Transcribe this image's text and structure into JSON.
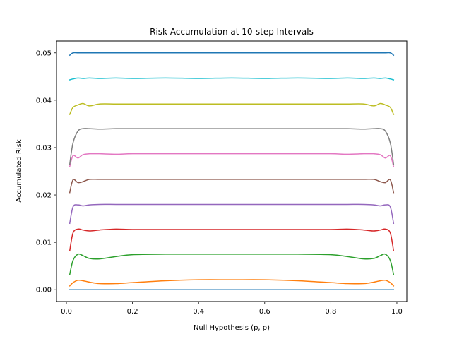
{
  "chart_data": {
    "type": "line",
    "title": "Risk Accumulation at 10-step Intervals",
    "xlabel": "Null Hypothesis (p, p)",
    "ylabel": "Accumulated Risk",
    "xlim": [
      -0.03,
      1.03
    ],
    "ylim": [
      -0.0025,
      0.0525
    ],
    "xticks": [
      0.0,
      0.2,
      0.4,
      0.6,
      0.8,
      1.0
    ],
    "xtick_labels": [
      "0.0",
      "0.2",
      "0.4",
      "0.6",
      "0.8",
      "1.0"
    ],
    "yticks": [
      0.0,
      0.01,
      0.02,
      0.03,
      0.04,
      0.05
    ],
    "ytick_labels": [
      "0.00",
      "0.01",
      "0.02",
      "0.03",
      "0.04",
      "0.05"
    ],
    "grid": false,
    "x": [
      0.01,
      0.02,
      0.035,
      0.05,
      0.07,
      0.1,
      0.15,
      0.2,
      0.3,
      0.4,
      0.5,
      0.6,
      0.7,
      0.8,
      0.85,
      0.9,
      0.93,
      0.95,
      0.965,
      0.98,
      0.99
    ],
    "series": [
      {
        "color": "#1f77b4",
        "values": [
          0.0,
          0.0,
          0.0,
          0.0,
          0.0,
          0.0,
          0.0,
          0.0,
          0.0,
          0.0,
          0.0,
          0.0,
          0.0,
          0.0,
          0.0,
          0.0,
          0.0,
          0.0,
          0.0,
          0.0,
          0.0
        ]
      },
      {
        "color": "#ff7f0e",
        "values": [
          0.0008,
          0.0015,
          0.002,
          0.0019,
          0.0016,
          0.0013,
          0.0013,
          0.0015,
          0.0019,
          0.0021,
          0.0021,
          0.0021,
          0.0019,
          0.0015,
          0.0013,
          0.0013,
          0.0016,
          0.0019,
          0.002,
          0.0015,
          0.0008
        ]
      },
      {
        "color": "#2ca02c",
        "values": [
          0.0032,
          0.0062,
          0.0075,
          0.0072,
          0.0066,
          0.0065,
          0.007,
          0.0074,
          0.0075,
          0.0075,
          0.0075,
          0.0075,
          0.0075,
          0.0074,
          0.007,
          0.0065,
          0.0066,
          0.0072,
          0.0075,
          0.0062,
          0.0032
        ]
      },
      {
        "color": "#d62728",
        "values": [
          0.0082,
          0.012,
          0.0128,
          0.0126,
          0.0124,
          0.0126,
          0.0128,
          0.0127,
          0.0127,
          0.0127,
          0.0127,
          0.0127,
          0.0127,
          0.0127,
          0.0128,
          0.0126,
          0.0124,
          0.0126,
          0.0128,
          0.012,
          0.0082
        ]
      },
      {
        "color": "#9467bd",
        "values": [
          0.014,
          0.0175,
          0.0179,
          0.0177,
          0.0179,
          0.018,
          0.018,
          0.018,
          0.018,
          0.018,
          0.018,
          0.018,
          0.018,
          0.018,
          0.018,
          0.018,
          0.0179,
          0.0177,
          0.0179,
          0.0175,
          0.014
        ]
      },
      {
        "color": "#8c564b",
        "values": [
          0.0205,
          0.0232,
          0.0226,
          0.0228,
          0.0233,
          0.0233,
          0.0233,
          0.0233,
          0.0233,
          0.0233,
          0.0233,
          0.0233,
          0.0233,
          0.0233,
          0.0233,
          0.0233,
          0.0233,
          0.0228,
          0.0226,
          0.0232,
          0.0205
        ]
      },
      {
        "color": "#e377c2",
        "values": [
          0.026,
          0.0283,
          0.0278,
          0.0285,
          0.0287,
          0.0287,
          0.0286,
          0.0287,
          0.0287,
          0.0287,
          0.0287,
          0.0287,
          0.0287,
          0.0287,
          0.0286,
          0.0287,
          0.0287,
          0.0285,
          0.0278,
          0.0283,
          0.026
        ]
      },
      {
        "color": "#7f7f7f",
        "values": [
          0.0265,
          0.031,
          0.0335,
          0.034,
          0.034,
          0.0339,
          0.034,
          0.034,
          0.034,
          0.034,
          0.034,
          0.034,
          0.034,
          0.034,
          0.034,
          0.0339,
          0.034,
          0.034,
          0.0335,
          0.031,
          0.0265
        ]
      },
      {
        "color": "#bcbd22",
        "values": [
          0.037,
          0.0385,
          0.039,
          0.0393,
          0.0388,
          0.0392,
          0.0392,
          0.0392,
          0.0392,
          0.0392,
          0.0392,
          0.0392,
          0.0392,
          0.0392,
          0.0392,
          0.0392,
          0.0388,
          0.0393,
          0.039,
          0.0385,
          0.037
        ]
      },
      {
        "color": "#17becf",
        "values": [
          0.0443,
          0.0445,
          0.0447,
          0.0446,
          0.0447,
          0.0446,
          0.0447,
          0.0446,
          0.0447,
          0.0446,
          0.0447,
          0.0446,
          0.0447,
          0.0446,
          0.0447,
          0.0446,
          0.0447,
          0.0446,
          0.0447,
          0.0445,
          0.0443
        ]
      },
      {
        "color": "#1f77b4",
        "values": [
          0.0495,
          0.05,
          0.05,
          0.05,
          0.05,
          0.05,
          0.05,
          0.05,
          0.05,
          0.05,
          0.05,
          0.05,
          0.05,
          0.05,
          0.05,
          0.05,
          0.05,
          0.05,
          0.05,
          0.05,
          0.0495
        ]
      }
    ]
  }
}
